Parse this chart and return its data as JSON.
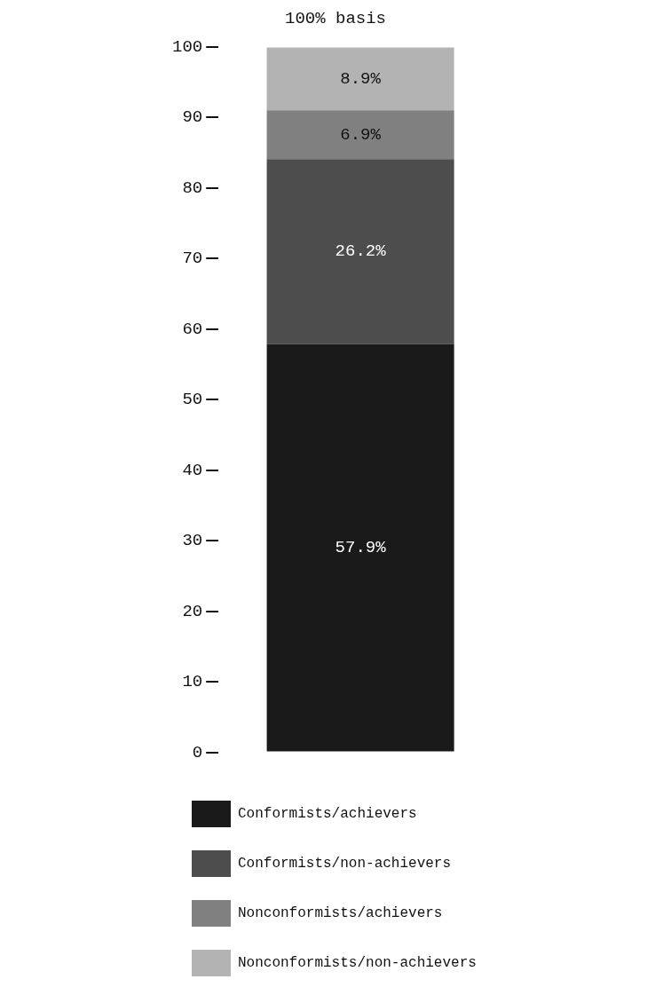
{
  "chart_data": {
    "type": "bar",
    "title": "100% basis",
    "categories": [
      null
    ],
    "stacked": true,
    "legend": "bottom",
    "grid": false,
    "ylim": [
      0,
      100
    ],
    "yticks": [
      0,
      10,
      20,
      30,
      40,
      50,
      60,
      70,
      80,
      90,
      100
    ],
    "series": [
      {
        "name": "Conformists/achievers",
        "color": "#1a1a1a",
        "values": [
          57.9
        ],
        "value_labels": [
          "57.9%"
        ]
      },
      {
        "name": "Conformists/non-achievers",
        "color": "#4d4d4d",
        "values": [
          26.2
        ],
        "value_labels": [
          "26.2%"
        ]
      },
      {
        "name": "Nonconformists/achievers",
        "color": "#808080",
        "values": [
          6.9
        ],
        "value_labels": [
          "6.9%"
        ]
      },
      {
        "name": "Nonconformists/non-achievers",
        "color": "#b3b3b3",
        "values": [
          8.9
        ],
        "value_labels": [
          "8.9%"
        ]
      }
    ]
  }
}
